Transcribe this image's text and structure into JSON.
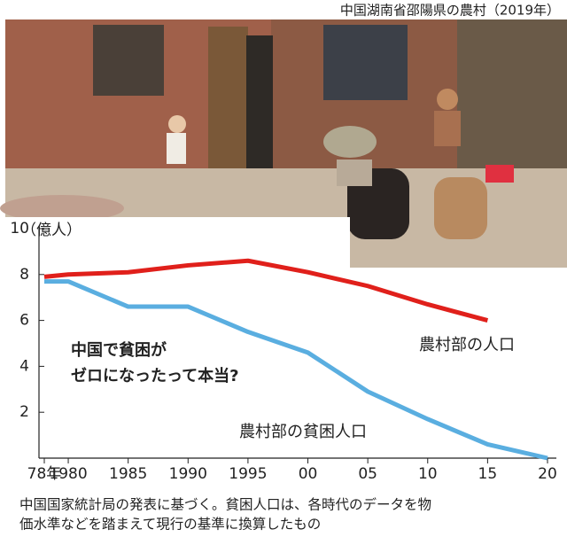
{
  "photo_caption": "中国湖南省邵陽県の農村（2019年）",
  "chart_data": {
    "type": "line",
    "y_label": "（億人）",
    "annotation": [
      "中国で貧困が",
      "ゼロになったって本当?"
    ],
    "x": [
      1978,
      1980,
      1985,
      1990,
      1995,
      2000,
      2005,
      2010,
      2015,
      2020
    ],
    "series": [
      {
        "name": "農村部の人口",
        "color": "#e0201b",
        "values": [
          7.9,
          8.0,
          8.1,
          8.4,
          8.6,
          8.1,
          7.5,
          6.7,
          6.0,
          null
        ]
      },
      {
        "name": "農村部の貧困人口",
        "color": "#5aaee0",
        "values": [
          7.7,
          7.7,
          6.6,
          6.6,
          5.5,
          4.6,
          2.9,
          1.7,
          0.6,
          0
        ]
      }
    ],
    "xlim": [
      1978,
      2020
    ],
    "xticks": [
      {
        "value": 1978,
        "label": "78年"
      },
      1980,
      1985,
      1990,
      1995,
      {
        "value": 2000,
        "label": "00"
      },
      {
        "value": 2005,
        "label": "05"
      },
      {
        "value": 2010,
        "label": "10"
      },
      {
        "value": 2015,
        "label": "15"
      },
      {
        "value": 2020,
        "label": "20"
      }
    ],
    "xtick_labels_short": [
      "78年",
      "80",
      "85",
      "90",
      "95",
      "00",
      "05",
      "10",
      "15",
      "20"
    ],
    "ylim": [
      0,
      10
    ],
    "yticks": [
      2,
      4,
      6,
      8,
      10
    ]
  },
  "note": [
    "中国国家統計局の発表に基づく。貧困人口は、各時代のデータを物",
    "価水準などを踏まえて現行の基準に換算したもの"
  ]
}
